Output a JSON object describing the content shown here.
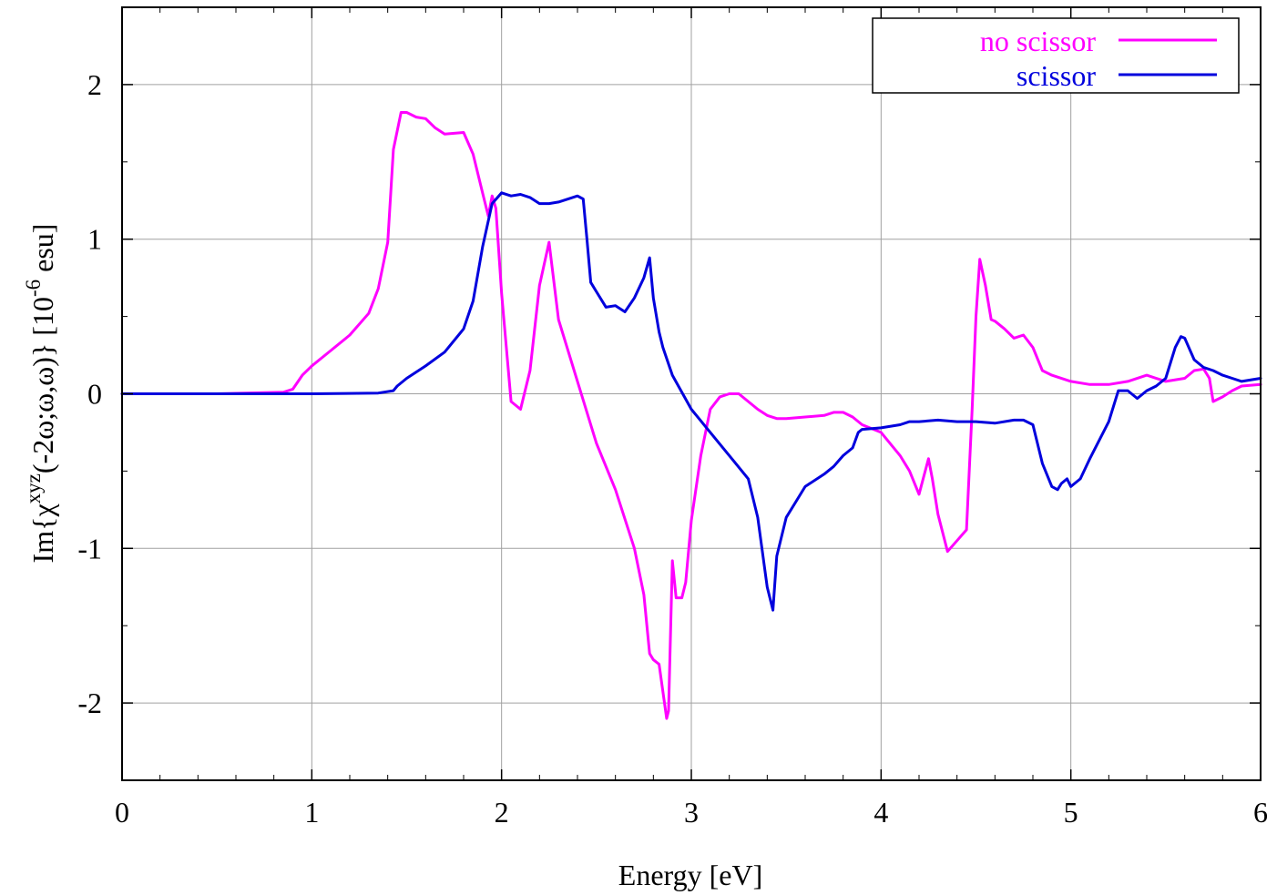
{
  "chart_data": {
    "type": "line",
    "xlabel": "Energy [eV]",
    "ylabel": {
      "main": "Im{χ",
      "sup1": "xyz",
      "args": "(-2ω;ω,ω)}   [10",
      "sup2": "-6",
      "unit": " esu]"
    },
    "xlim": [
      0,
      6
    ],
    "ylim": [
      -2.5,
      2.5
    ],
    "xticks": [
      0,
      1,
      2,
      3,
      4,
      5,
      6
    ],
    "xtick_labels": [
      "0",
      "1",
      "2",
      "3",
      "4",
      "5",
      "6"
    ],
    "yticks": [
      -2,
      -1,
      0,
      1,
      2
    ],
    "ytick_labels": [
      "-2",
      "-1",
      "0",
      "1",
      "2"
    ],
    "grid": true,
    "legend_position": "top-right",
    "series": [
      {
        "name": "no scissor",
        "color": "#ff00ff",
        "x": [
          0,
          0.5,
          0.85,
          0.9,
          0.95,
          1.0,
          1.1,
          1.2,
          1.3,
          1.35,
          1.4,
          1.43,
          1.47,
          1.5,
          1.55,
          1.6,
          1.65,
          1.7,
          1.8,
          1.85,
          1.9,
          1.93,
          1.95,
          1.97,
          2.0,
          2.05,
          2.1,
          2.15,
          2.2,
          2.25,
          2.3,
          2.4,
          2.5,
          2.6,
          2.7,
          2.75,
          2.78,
          2.8,
          2.83,
          2.87,
          2.88,
          2.9,
          2.92,
          2.95,
          2.97,
          3.0,
          3.05,
          3.1,
          3.15,
          3.2,
          3.25,
          3.3,
          3.35,
          3.4,
          3.45,
          3.5,
          3.6,
          3.7,
          3.75,
          3.8,
          3.85,
          3.9,
          4.0,
          4.1,
          4.15,
          4.2,
          4.25,
          4.27,
          4.3,
          4.35,
          4.4,
          4.45,
          4.48,
          4.5,
          4.52,
          4.55,
          4.58,
          4.6,
          4.65,
          4.7,
          4.75,
          4.8,
          4.85,
          4.9,
          5.0,
          5.1,
          5.2,
          5.3,
          5.4,
          5.5,
          5.6,
          5.65,
          5.7,
          5.73,
          5.75,
          5.8,
          5.85,
          5.9,
          6.0
        ],
        "y": [
          0.0,
          0.0,
          0.01,
          0.03,
          0.12,
          0.18,
          0.28,
          0.38,
          0.52,
          0.68,
          0.98,
          1.58,
          1.82,
          1.82,
          1.79,
          1.78,
          1.72,
          1.68,
          1.69,
          1.55,
          1.3,
          1.15,
          1.28,
          1.2,
          0.65,
          -0.05,
          -0.1,
          0.15,
          0.7,
          0.98,
          0.48,
          0.08,
          -0.32,
          -0.62,
          -1.0,
          -1.3,
          -1.68,
          -1.72,
          -1.75,
          -2.1,
          -2.05,
          -1.08,
          -1.32,
          -1.32,
          -1.22,
          -0.82,
          -0.4,
          -0.1,
          -0.02,
          0.0,
          0.0,
          -0.05,
          -0.1,
          -0.14,
          -0.16,
          -0.16,
          -0.15,
          -0.14,
          -0.12,
          -0.12,
          -0.15,
          -0.2,
          -0.25,
          -0.4,
          -0.5,
          -0.65,
          -0.42,
          -0.55,
          -0.78,
          -1.02,
          -0.95,
          -0.88,
          -0.1,
          0.5,
          0.87,
          0.7,
          0.48,
          0.47,
          0.42,
          0.36,
          0.38,
          0.3,
          0.15,
          0.12,
          0.08,
          0.06,
          0.06,
          0.08,
          0.12,
          0.08,
          0.1,
          0.15,
          0.16,
          0.1,
          -0.05,
          -0.02,
          0.02,
          0.05,
          0.06
        ]
      },
      {
        "name": "scissor",
        "color": "#0000dd",
        "x": [
          0,
          0.5,
          1.0,
          1.35,
          1.43,
          1.45,
          1.5,
          1.6,
          1.7,
          1.8,
          1.85,
          1.9,
          1.95,
          2.0,
          2.05,
          2.1,
          2.15,
          2.2,
          2.25,
          2.3,
          2.35,
          2.4,
          2.43,
          2.45,
          2.47,
          2.5,
          2.55,
          2.6,
          2.65,
          2.7,
          2.75,
          2.78,
          2.8,
          2.83,
          2.85,
          2.9,
          3.0,
          3.1,
          3.2,
          3.3,
          3.35,
          3.4,
          3.43,
          3.45,
          3.5,
          3.55,
          3.6,
          3.7,
          3.75,
          3.8,
          3.85,
          3.88,
          3.9,
          4.0,
          4.1,
          4.15,
          4.2,
          4.3,
          4.4,
          4.5,
          4.6,
          4.7,
          4.75,
          4.8,
          4.85,
          4.9,
          4.93,
          4.95,
          4.98,
          5.0,
          5.05,
          5.1,
          5.15,
          5.2,
          5.25,
          5.3,
          5.35,
          5.4,
          5.45,
          5.5,
          5.55,
          5.58,
          5.6,
          5.65,
          5.7,
          5.75,
          5.8,
          5.85,
          5.9,
          6.0
        ],
        "y": [
          0.0,
          0.0,
          0.0,
          0.005,
          0.02,
          0.05,
          0.1,
          0.18,
          0.27,
          0.42,
          0.6,
          0.95,
          1.23,
          1.3,
          1.28,
          1.29,
          1.27,
          1.23,
          1.23,
          1.24,
          1.26,
          1.28,
          1.26,
          1.0,
          0.72,
          0.66,
          0.56,
          0.57,
          0.53,
          0.62,
          0.75,
          0.88,
          0.62,
          0.4,
          0.3,
          0.12,
          -0.1,
          -0.25,
          -0.4,
          -0.55,
          -0.8,
          -1.25,
          -1.4,
          -1.05,
          -0.8,
          -0.7,
          -0.6,
          -0.52,
          -0.47,
          -0.4,
          -0.35,
          -0.25,
          -0.23,
          -0.22,
          -0.2,
          -0.18,
          -0.18,
          -0.17,
          -0.18,
          -0.18,
          -0.19,
          -0.17,
          -0.17,
          -0.2,
          -0.45,
          -0.6,
          -0.62,
          -0.58,
          -0.55,
          -0.6,
          -0.55,
          -0.42,
          -0.3,
          -0.18,
          0.02,
          0.02,
          -0.03,
          0.02,
          0.05,
          0.1,
          0.3,
          0.37,
          0.36,
          0.22,
          0.17,
          0.15,
          0.12,
          0.1,
          0.08,
          0.1
        ]
      }
    ]
  }
}
